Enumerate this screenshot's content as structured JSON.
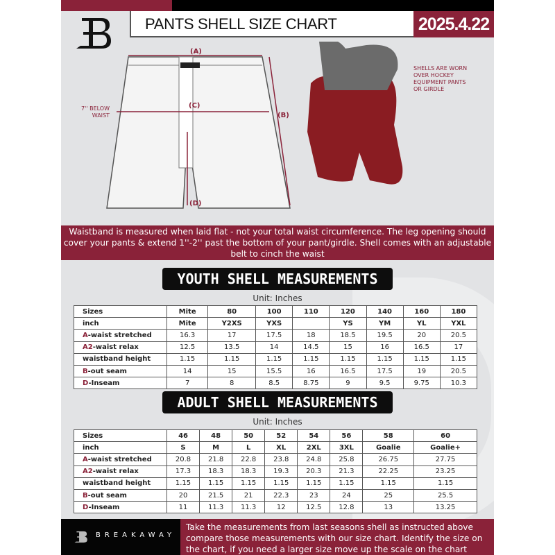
{
  "header": {
    "title": "PANTS SHELL SIZE CHART",
    "date": "2025.4.22",
    "logo_letter": "B"
  },
  "diagram": {
    "label_a": "(A)",
    "label_b": "(B)",
    "label_c": "(C)",
    "label_d": "(D)",
    "below_waist": "7'' BELOW WAIST",
    "worn_note": "SHELLS ARE WORN OVER HOCKEY EQUIPMENT PANTS OR GIRDLE"
  },
  "band": {
    "text": "Waistband is measured when laid flat - not your total waist circumference. The leg opening should cover your pants & extend 1''-2'' past the bottom of your pant/girdle. Shell comes with an adjustable belt to cinch the waist"
  },
  "youth": {
    "heading": "YOUTH SHELL MEASUREMENTS",
    "unit": "Unit: Inches",
    "rows": [
      {
        "p": "",
        "l": "Sizes",
        "v": [
          "Mite",
          "80",
          "100",
          "110",
          "120",
          "140",
          "160",
          "180"
        ]
      },
      {
        "p": "",
        "l": "inch",
        "v": [
          "Mite",
          "Y2XS",
          "YXS",
          "",
          "YS",
          "YM",
          "YL",
          "YXL"
        ]
      },
      {
        "p": "A",
        "l": "-waist stretched",
        "v": [
          "16.3",
          "17",
          "17.5",
          "18",
          "18.5",
          "19.5",
          "20",
          "20.5"
        ]
      },
      {
        "p": "A2",
        "l": "-waist relax",
        "v": [
          "12.5",
          "13.5",
          "14",
          "14.5",
          "15",
          "16",
          "16.5",
          "17"
        ]
      },
      {
        "p": "",
        "l": "waistband height",
        "v": [
          "1.15",
          "1.15",
          "1.15",
          "1.15",
          "1.15",
          "1.15",
          "1.15",
          "1.15"
        ]
      },
      {
        "p": "B",
        "l": "-out seam",
        "v": [
          "14",
          "15",
          "15.5",
          "16",
          "16.5",
          "17.5",
          "19",
          "20.5"
        ]
      },
      {
        "p": "D",
        "l": "-Inseam",
        "v": [
          "7",
          "8",
          "8.5",
          "8.75",
          "9",
          "9.5",
          "9.75",
          "10.3"
        ]
      }
    ]
  },
  "adult": {
    "heading": "ADULT SHELL MEASUREMENTS",
    "unit": "Unit: Inches",
    "rows": [
      {
        "p": "",
        "l": "Sizes",
        "v": [
          "46",
          "48",
          "50",
          "52",
          "54",
          "56",
          "58",
          "60"
        ]
      },
      {
        "p": "",
        "l": "inch",
        "v": [
          "S",
          "M",
          "L",
          "XL",
          "2XL",
          "3XL",
          "Goalie",
          "Goalie+"
        ]
      },
      {
        "p": "A",
        "l": "-waist stretched",
        "v": [
          "20.8",
          "21.8",
          "22.8",
          "23.8",
          "24.8",
          "25.8",
          "26.75",
          "27.75"
        ]
      },
      {
        "p": "A2",
        "l": "-waist relax",
        "v": [
          "17.3",
          "18.3",
          "18.3",
          "19.3",
          "20.3",
          "21.3",
          "22.25",
          "23.25"
        ]
      },
      {
        "p": "",
        "l": "waistband height",
        "v": [
          "1.15",
          "1.15",
          "1.15",
          "1.15",
          "1.15",
          "1.15",
          "1.15",
          "1.15"
        ]
      },
      {
        "p": "B",
        "l": "-out seam",
        "v": [
          "20",
          "21.5",
          "21",
          "22.3",
          "23",
          "24",
          "25",
          "25.5"
        ]
      },
      {
        "p": "D",
        "l": "-Inseam",
        "v": [
          "11",
          "11.3",
          "11.3",
          "12",
          "12.5",
          "12.8",
          "13",
          "13.25"
        ]
      }
    ]
  },
  "footer": {
    "brand": "BREAKAWAY",
    "text": "Take the measurements from last seasons shell as instructed above compare those measurements  with our size chart. Identify the size on the chart, if you need a larger size move up the scale on the chart"
  },
  "colors": {
    "accent": "#8a2239",
    "background": "#e2e3e5"
  }
}
